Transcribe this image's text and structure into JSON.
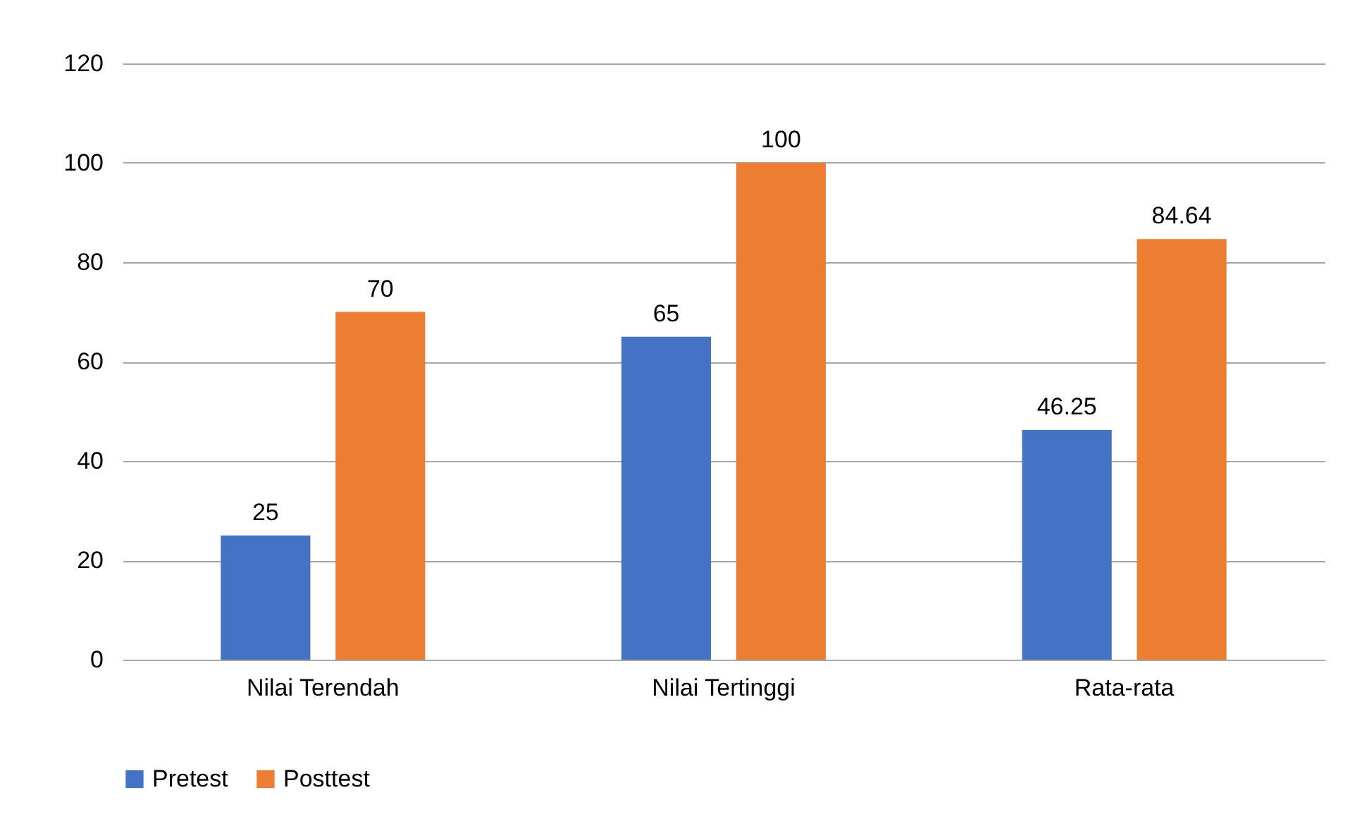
{
  "chart_data": {
    "type": "bar",
    "categories": [
      "Nilai Terendah",
      "Nilai Tertinggi",
      "Rata-rata"
    ],
    "series": [
      {
        "name": "Pretest",
        "color": "#4472c4",
        "values": [
          25,
          65,
          46.25
        ]
      },
      {
        "name": "Posttest",
        "color": "#ed7d31",
        "values": [
          70,
          100,
          84.64
        ]
      }
    ],
    "ylim": [
      0,
      120
    ],
    "yticks": [
      0,
      20,
      40,
      60,
      80,
      100,
      120
    ],
    "grid": "y",
    "legend": "bottom",
    "data_labels": true
  }
}
